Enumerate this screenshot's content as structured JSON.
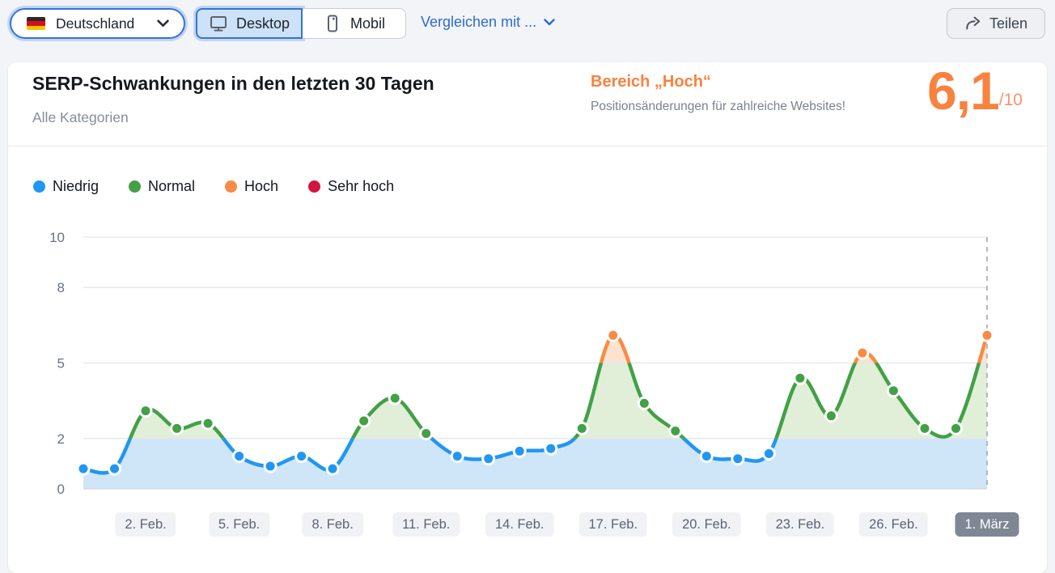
{
  "topbar": {
    "country_selector": {
      "label": "Deutschland",
      "flag": "germany"
    },
    "device_toggle": {
      "desktop_label": "Desktop",
      "mobil_label": "Mobil",
      "selected": "Desktop"
    },
    "compare_link": "Vergleichen mit ...",
    "share_button": "Teilen"
  },
  "card": {
    "title": "SERP-Schwankungen in den letzten 30 Tagen",
    "subtitle": "Alle Kategorien",
    "status": {
      "range_label": "Bereich „Hoch“",
      "description": "Positionsänderungen für zahlreiche Websites!",
      "score": "6,1",
      "score_suffix": "/10",
      "accent_color": "#f9823f"
    }
  },
  "legend": [
    {
      "label": "Niedrig",
      "color": "#2196f3"
    },
    {
      "label": "Normal",
      "color": "#43a047"
    },
    {
      "label": "Hoch",
      "color": "#fa8a45"
    },
    {
      "label": "Sehr hoch",
      "color": "#d21441"
    }
  ],
  "chart_data": {
    "type": "area",
    "title": "SERP-Schwankungen in den letzten 30 Tagen",
    "ylim": [
      0,
      10
    ],
    "y_ticks": [
      0,
      2,
      5,
      8,
      10
    ],
    "grid": true,
    "legend_position": "top-left",
    "values": [
      0.8,
      0.8,
      3.1,
      2.4,
      2.6,
      1.3,
      0.9,
      1.3,
      0.8,
      2.7,
      3.6,
      2.2,
      1.3,
      1.2,
      1.5,
      1.6,
      2.4,
      6.1,
      3.4,
      2.3,
      1.3,
      1.2,
      1.4,
      4.4,
      2.9,
      5.4,
      3.9,
      2.4,
      2.4,
      6.1
    ],
    "x_tick_labels": [
      {
        "label": "2. Feb.",
        "index": 2
      },
      {
        "label": "5. Feb.",
        "index": 5
      },
      {
        "label": "8. Feb.",
        "index": 8
      },
      {
        "label": "11. Feb.",
        "index": 11
      },
      {
        "label": "14. Feb.",
        "index": 14
      },
      {
        "label": "17. Feb.",
        "index": 17
      },
      {
        "label": "20. Feb.",
        "index": 20
      },
      {
        "label": "23. Feb.",
        "index": 23
      },
      {
        "label": "26. Feb.",
        "index": 26
      },
      {
        "label": "1. März",
        "index": 29,
        "current": true
      }
    ],
    "levels": [
      {
        "name": "Niedrig",
        "max": 2,
        "line": "#2196f3",
        "fill": "#cfe6f9"
      },
      {
        "name": "Normal",
        "max": 5,
        "line": "#43a047",
        "fill": "#e1efd9"
      },
      {
        "name": "Hoch",
        "max": 8,
        "line": "#fa8a45",
        "fill": "#fce3d0"
      },
      {
        "name": "Sehr hoch",
        "max": 10,
        "line": "#d21441",
        "fill": "#f9d3dc"
      }
    ],
    "current": {
      "label": "1. März",
      "value": 6.1
    }
  }
}
